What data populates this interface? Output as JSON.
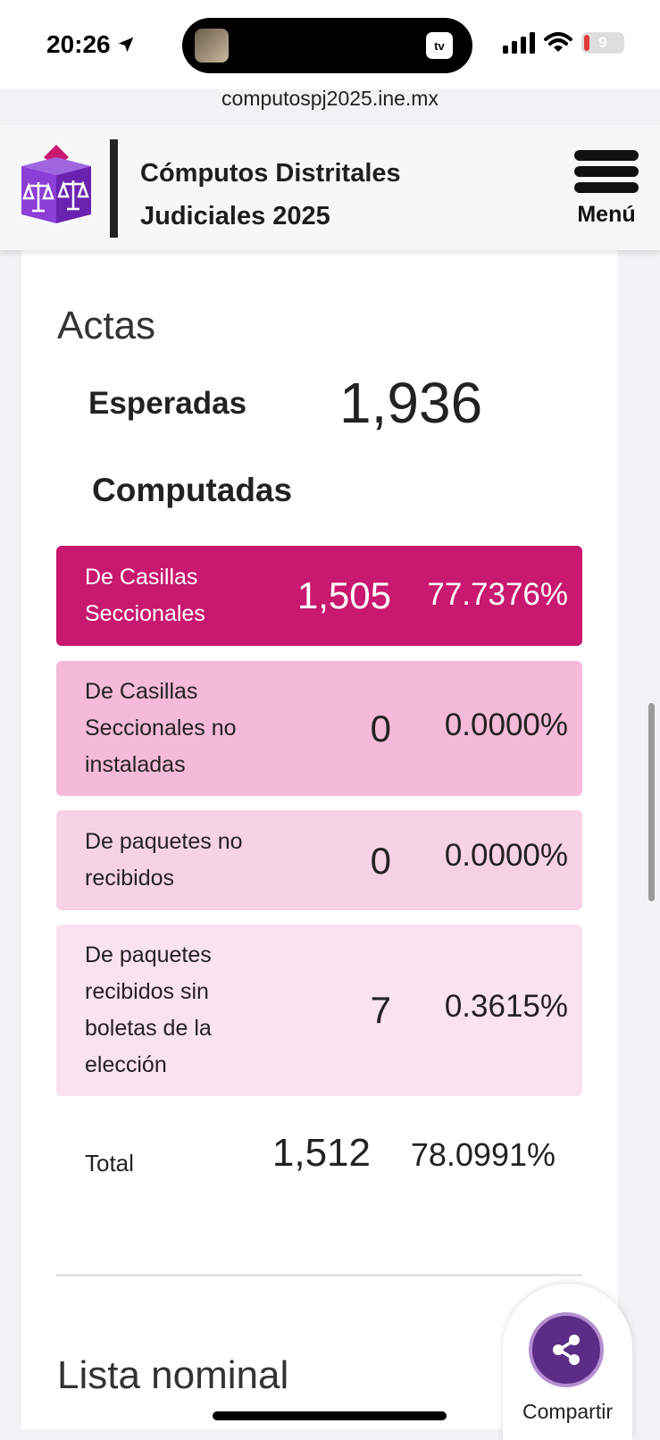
{
  "status_bar": {
    "time": "20:26",
    "tv_label": "tv",
    "battery": "9"
  },
  "browser": {
    "url": "computospj2025.ine.mx"
  },
  "header": {
    "title_line1": "Cómputos Distritales",
    "title_line2": "Judiciales 2025",
    "menu_label": "Menú"
  },
  "actas": {
    "title": "Actas",
    "esperadas_label": "Esperadas",
    "esperadas_value": "1,936",
    "computadas_label": "Computadas",
    "rows": [
      {
        "label": [
          "De Casillas",
          "Seccionales"
        ],
        "value": "1,505",
        "pct": "77.7376%",
        "bg": "#c8186f",
        "fg": "#ffffff"
      },
      {
        "label": [
          "De Casillas",
          "Seccionales no",
          "instaladas"
        ],
        "value": "0",
        "pct": "0.0000%",
        "bg": "#f4bad8",
        "fg": "#222222"
      },
      {
        "label": [
          "De paquetes no",
          "recibidos"
        ],
        "value": "0",
        "pct": "0.0000%",
        "bg": "#f7d2e5",
        "fg": "#222222"
      },
      {
        "label": [
          "De paquetes",
          "recibidos sin",
          "boletas de la",
          "elección"
        ],
        "value": "7",
        "pct": "0.3615%",
        "bg": "#fbe2ef",
        "fg": "#222222"
      }
    ],
    "total_label": "Total",
    "total_value": "1,512",
    "total_pct": "78.0991%"
  },
  "lista_nominal": {
    "title": "Lista nominal"
  },
  "share": {
    "label": "Compartir"
  },
  "colors": {
    "brand_pink": "#c8186f",
    "share_purple": "#5b2d86",
    "logo_purple": "#7a2fc6"
  },
  "icons": [
    "location-arrow-icon",
    "signal-icon",
    "wifi-icon",
    "battery-icon",
    "hamburger-menu-icon",
    "share-icon",
    "ballot-box-logo"
  ]
}
